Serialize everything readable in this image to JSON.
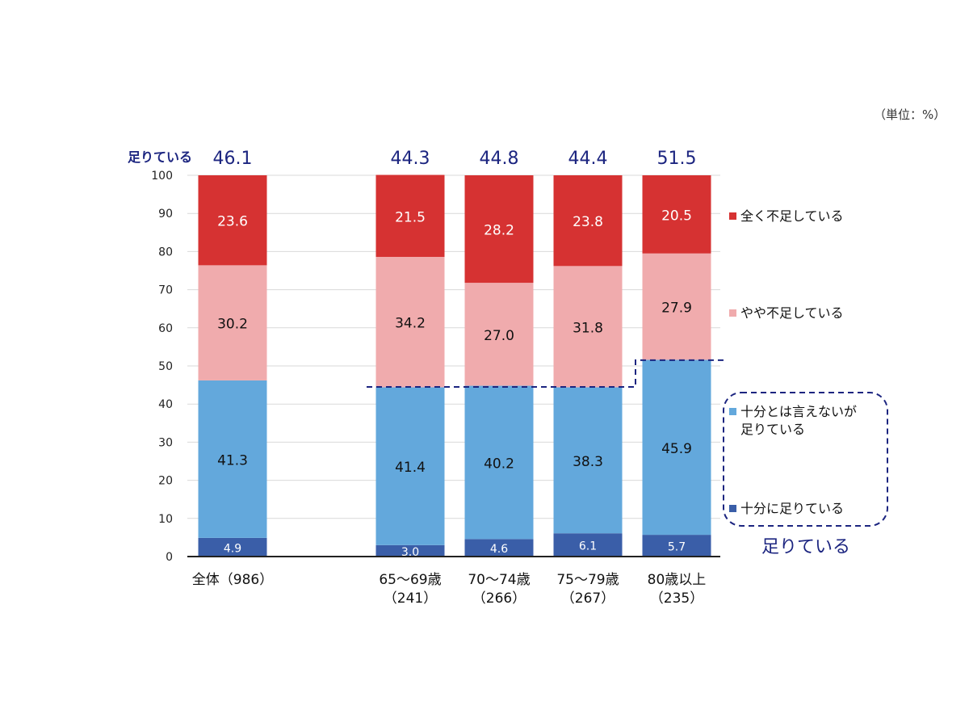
{
  "unit_note": "（単位：%）",
  "sufficient_label": "足りている",
  "sufficient_group_label": "足りている",
  "colors": {
    "fully_sufficient": "#3a5ea8",
    "not_fully_but_sufficient": "#63a8dc",
    "somewhat_insufficient": "#f0abad",
    "completely_insufficient": "#d63232",
    "accent_navy": "#1c2580",
    "grid": "#d9d9d9"
  },
  "chart_data": {
    "type": "bar",
    "stacked": true,
    "categories": [
      {
        "label": "全体（986）",
        "line1": "全体（986）",
        "line2": ""
      },
      {
        "label": "65～69歳（241）",
        "line1": "65～69歳",
        "line2": "（241）"
      },
      {
        "label": "70～74歳（266）",
        "line1": "70～74歳",
        "line2": "（266）"
      },
      {
        "label": "75～79歳（267）",
        "line1": "75～79歳",
        "line2": "（267）"
      },
      {
        "label": "80歳以上（235）",
        "line1": "80歳以上",
        "line2": "（235）"
      }
    ],
    "series": [
      {
        "name": "十分に足りている",
        "color": "#3a5ea8",
        "label_color": "#ffffff",
        "values": [
          4.9,
          3.0,
          4.6,
          6.1,
          5.7
        ]
      },
      {
        "name": "十分とは言えないが足りている",
        "legend_line1": "十分とは言えないが",
        "legend_line2": "足りている",
        "color": "#63a8dc",
        "label_color": "#111111",
        "values": [
          41.3,
          41.4,
          40.2,
          38.3,
          45.9
        ]
      },
      {
        "name": "やや不足している",
        "color": "#f0abad",
        "label_color": "#111111",
        "values": [
          30.2,
          34.2,
          27.0,
          31.8,
          27.9
        ]
      },
      {
        "name": "全く不足している",
        "color": "#d63232",
        "label_color": "#ffffff",
        "values": [
          23.6,
          21.5,
          28.2,
          23.8,
          20.5
        ]
      }
    ],
    "sufficient_totals": [
      46.1,
      44.3,
      44.8,
      44.4,
      51.5
    ],
    "ylim": [
      0,
      100
    ],
    "yticks": [
      0,
      10,
      20,
      30,
      40,
      50,
      60,
      70,
      80,
      90,
      100
    ],
    "grid": true,
    "legend_position": "right"
  }
}
